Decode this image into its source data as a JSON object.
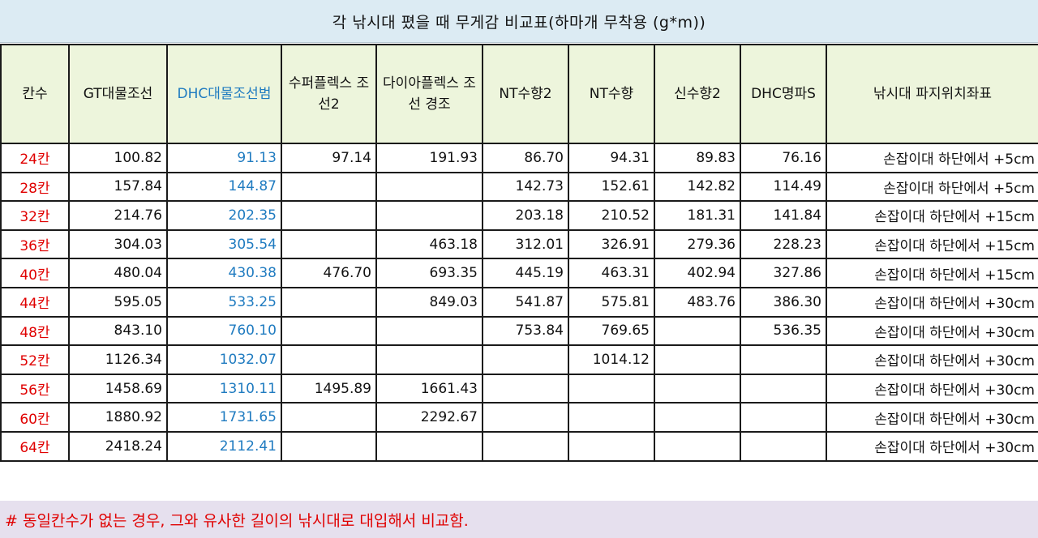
{
  "title": "각 낚시대 폈을 때 무게감 비교표(하마개 무착용 (g*m))",
  "headers": [
    "칸수",
    "GT대물조선",
    "DHC대물조선범",
    "수퍼플렉스 조선2",
    "다이아플렉스 조선 경조",
    "NT수향2",
    "NT수향",
    "신수향2",
    "DHC명파S",
    "낚시대 파지위치좌표"
  ],
  "rows": [
    {
      "kan": "24칸",
      "gt": "100.82",
      "dhc": "91.13",
      "super": "97.14",
      "dia": "191.93",
      "nt2": "86.70",
      "nt": "94.31",
      "shin": "89.83",
      "myeong": "76.16",
      "pos": "손잡이대 하단에서 +5cm"
    },
    {
      "kan": "28칸",
      "gt": "157.84",
      "dhc": "144.87",
      "super": "",
      "dia": "",
      "nt2": "142.73",
      "nt": "152.61",
      "shin": "142.82",
      "myeong": "114.49",
      "pos": "손잡이대 하단에서 +5cm"
    },
    {
      "kan": "32칸",
      "gt": "214.76",
      "dhc": "202.35",
      "super": "",
      "dia": "",
      "nt2": "203.18",
      "nt": "210.52",
      "shin": "181.31",
      "myeong": "141.84",
      "pos": "손잡이대 하단에서 +15cm"
    },
    {
      "kan": "36칸",
      "gt": "304.03",
      "dhc": "305.54",
      "super": "",
      "dia": "463.18",
      "nt2": "312.01",
      "nt": "326.91",
      "shin": "279.36",
      "myeong": "228.23",
      "pos": "손잡이대 하단에서 +15cm"
    },
    {
      "kan": "40칸",
      "gt": "480.04",
      "dhc": "430.38",
      "super": "476.70",
      "dia": "693.35",
      "nt2": "445.19",
      "nt": "463.31",
      "shin": "402.94",
      "myeong": "327.86",
      "pos": "손잡이대 하단에서 +15cm"
    },
    {
      "kan": "44칸",
      "gt": "595.05",
      "dhc": "533.25",
      "super": "",
      "dia": "849.03",
      "nt2": "541.87",
      "nt": "575.81",
      "shin": "483.76",
      "myeong": "386.30",
      "pos": "손잡이대 하단에서 +30cm"
    },
    {
      "kan": "48칸",
      "gt": "843.10",
      "dhc": "760.10",
      "super": "",
      "dia": "",
      "nt2": "753.84",
      "nt": "769.65",
      "shin": "",
      "myeong": "536.35",
      "pos": "손잡이대 하단에서 +30cm"
    },
    {
      "kan": "52칸",
      "gt": "1126.34",
      "dhc": "1032.07",
      "super": "",
      "dia": "",
      "nt2": "",
      "nt": "1014.12",
      "shin": "",
      "myeong": "",
      "pos": "손잡이대 하단에서 +30cm"
    },
    {
      "kan": "56칸",
      "gt": "1458.69",
      "dhc": "1310.11",
      "super": "1495.89",
      "dia": "1661.43",
      "nt2": "",
      "nt": "",
      "shin": "",
      "myeong": "",
      "pos": "손잡이대 하단에서 +30cm"
    },
    {
      "kan": "60칸",
      "gt": "1880.92",
      "dhc": "1731.65",
      "super": "",
      "dia": "2292.67",
      "nt2": "",
      "nt": "",
      "shin": "",
      "myeong": "",
      "pos": "손잡이대 하단에서 +30cm"
    },
    {
      "kan": "64칸",
      "gt": "2418.24",
      "dhc": "2112.41",
      "super": "",
      "dia": "",
      "nt2": "",
      "nt": "",
      "shin": "",
      "myeong": "",
      "pos": "손잡이대 하단에서 +30cm"
    }
  ],
  "footnote": "# 동일칸수가 없는 경우, 그와 유사한 길이의 낚시대로 대입해서 비교함.",
  "colors": {
    "title_bg": "#dcebf3",
    "header_bg": "#edf5dc",
    "footnote_bg": "#e6e0ee",
    "kan_text": "#e00000",
    "dhc_text": "#1f7bc0",
    "footnote_text": "#e00000"
  }
}
